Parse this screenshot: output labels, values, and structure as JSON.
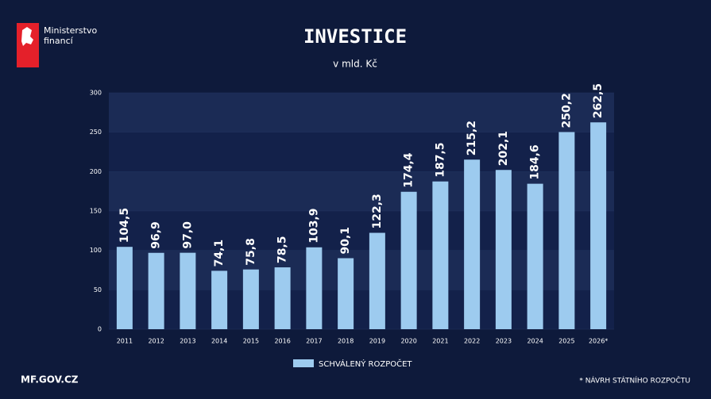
{
  "logo": {
    "lines": [
      "Ministerstvo",
      "financí"
    ]
  },
  "footer": {
    "site": "MF.GOV.CZ",
    "note": "* NÁVRH STÁTNÍHO ROZPOČTU"
  },
  "chart_data": {
    "type": "bar",
    "title": "INVESTICE",
    "subtitle": "v mld. Kč",
    "categories": [
      "2011",
      "2012",
      "2013",
      "2014",
      "2015",
      "2016",
      "2017",
      "2018",
      "2019",
      "2020",
      "2021",
      "2022",
      "2023",
      "2024",
      "2025",
      "2026*"
    ],
    "series": [
      {
        "name": "SCHVÁLENÝ ROZPOČET",
        "color": "#9dcbef",
        "values": [
          104.5,
          96.9,
          97.0,
          74.1,
          75.8,
          78.5,
          103.9,
          90.1,
          122.3,
          174.4,
          187.5,
          215.2,
          202.1,
          184.6,
          250.2,
          262.5
        ],
        "value_labels": [
          "104,5",
          "96,9",
          "97,0",
          "74,1",
          "75,8",
          "78,5",
          "103,9",
          "90,1",
          "122,3",
          "174,4",
          "187,5",
          "215,2",
          "202,1",
          "184,6",
          "250,2",
          "262,5"
        ]
      }
    ],
    "ylim": [
      0,
      300
    ],
    "yticks": [
      0,
      50,
      100,
      150,
      200,
      250,
      300
    ],
    "grid": "bands",
    "legend": "bottom"
  }
}
